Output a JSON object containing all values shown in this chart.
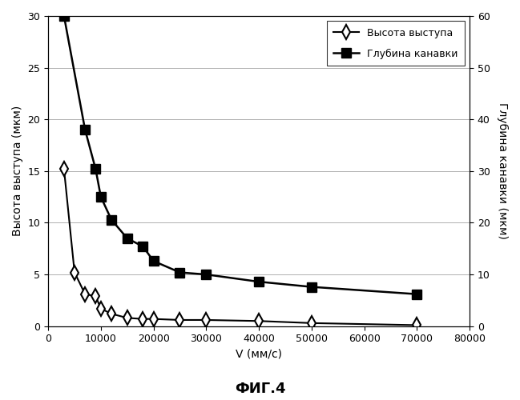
{
  "title": "ФИГ.4",
  "xlabel": "V (мм/с)",
  "ylabel_left": "Высота выступа (мкм)",
  "ylabel_right": "Глубина канавки (мкм)",
  "x_ridge": [
    3000,
    5000,
    7000,
    9000,
    10000,
    12000,
    15000,
    18000,
    20000,
    25000,
    30000,
    40000,
    50000,
    70000
  ],
  "y_ridge": [
    15.2,
    5.2,
    3.1,
    2.9,
    1.7,
    1.2,
    0.8,
    0.7,
    0.7,
    0.6,
    0.6,
    0.5,
    0.3,
    0.1
  ],
  "x_groove": [
    3000,
    7000,
    9000,
    10000,
    12000,
    15000,
    18000,
    20000,
    25000,
    30000,
    40000,
    50000,
    70000
  ],
  "y_groove": [
    60.0,
    38.0,
    30.4,
    25.0,
    20.6,
    17.0,
    15.4,
    12.6,
    10.4,
    10.0,
    8.6,
    7.6,
    6.2
  ],
  "xlim": [
    0,
    80000
  ],
  "ylim_left": [
    0,
    30
  ],
  "ylim_right": [
    0,
    60
  ],
  "xticks": [
    0,
    10000,
    20000,
    30000,
    40000,
    50000,
    60000,
    70000,
    80000
  ],
  "yticks_left": [
    0,
    5,
    10,
    15,
    20,
    25,
    30
  ],
  "yticks_right": [
    0,
    10,
    20,
    30,
    40,
    50,
    60
  ],
  "legend_label_ridge": "Высота выступа",
  "legend_label_groove": "Глубина канавки",
  "background_color": "#ffffff",
  "line_color": "#000000",
  "grid_color": "#b0b0b0",
  "title_fontsize": 13,
  "label_fontsize": 10,
  "legend_fontsize": 9,
  "tick_fontsize": 9
}
